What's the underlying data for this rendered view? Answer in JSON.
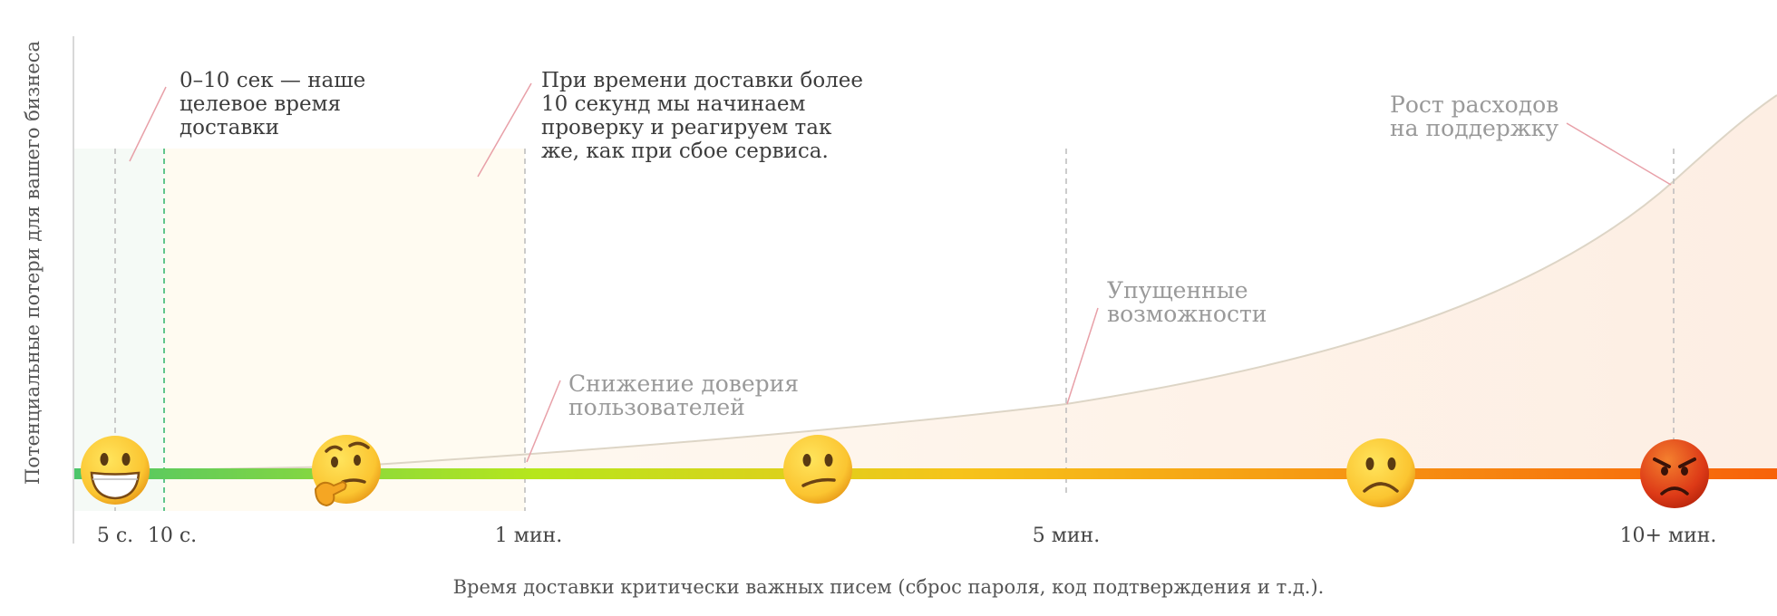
{
  "axes": {
    "y_title": "Потенциальные потери для вашего бизнеса",
    "x_title": "Время доставки критически важных писем (сброс пароля, код подтверждения и т.д.)."
  },
  "ticks": [
    {
      "label": "5 с."
    },
    {
      "label": "10 с."
    },
    {
      "label": "1 мин."
    },
    {
      "label": "5 мин."
    },
    {
      "label": "10+ мин."
    }
  ],
  "annotations": {
    "target": [
      "0–10 сек — наше",
      "целевое время",
      "доставки"
    ],
    "check": [
      "При времени доставки более",
      "10 секунд мы начинаем",
      "проверку и реагируем так",
      "же, как при сбое сервиса."
    ],
    "trust": [
      "Снижение доверия",
      "пользователей"
    ],
    "missed": [
      "Упущенные",
      "возможности"
    ],
    "support": [
      "Рост расходов",
      "на поддержку"
    ]
  },
  "faces": [
    {
      "name": "grinning-face-icon",
      "mood": "happy"
    },
    {
      "name": "thinking-face-icon",
      "mood": "thinking"
    },
    {
      "name": "confused-face-icon",
      "mood": "confused"
    },
    {
      "name": "frowning-face-icon",
      "mood": "sad"
    },
    {
      "name": "angry-face-icon",
      "mood": "angry"
    }
  ],
  "colors": {
    "bar_start": "#4cc56a",
    "bar_mid": "#b6e61c",
    "bar_yellow": "#f6c31a",
    "bar_end": "#f7620a",
    "target_zone": "#f5faf6",
    "check_zone": "#fffbf1",
    "target_line": "#2fb36a",
    "leader_line": "#e8a0a8",
    "curve": "#ddd5c6"
  }
}
